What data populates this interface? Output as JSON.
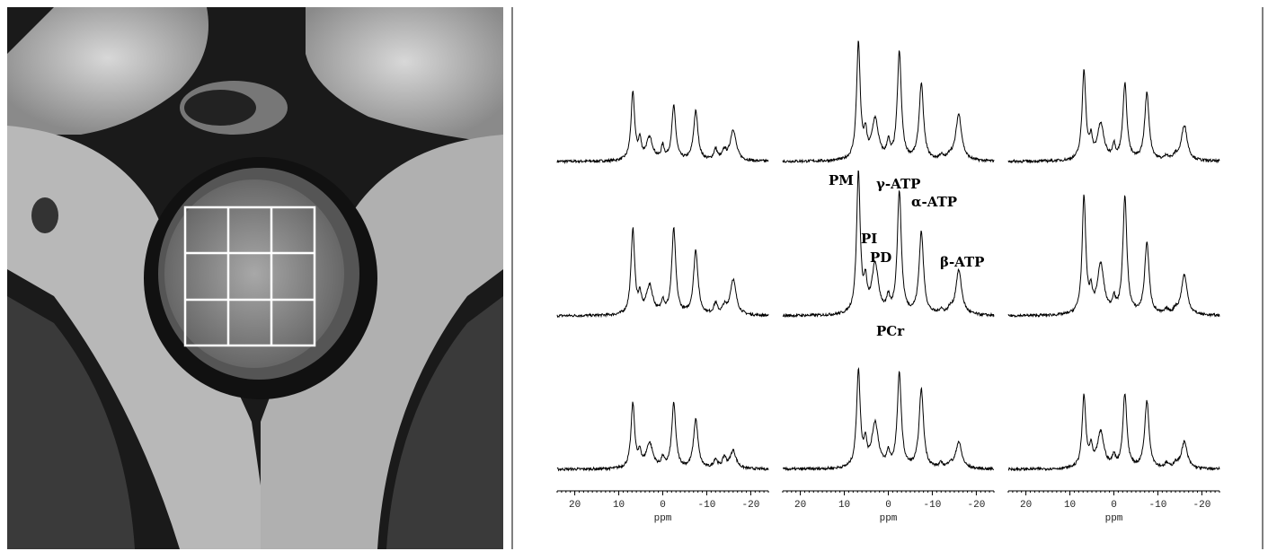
{
  "spectra": {
    "xlim": [
      24,
      -24
    ],
    "xticks": [
      20,
      10,
      0,
      -10,
      -20
    ],
    "xlabel": "ppm",
    "peak_labels": {
      "pm": "PM",
      "gamma_atp": "γ-ATP",
      "alpha_atp": "α-ATP",
      "pi": "PI",
      "pd": "PD",
      "beta_atp": "β-ATP",
      "pcr": "PCr"
    }
  }
}
